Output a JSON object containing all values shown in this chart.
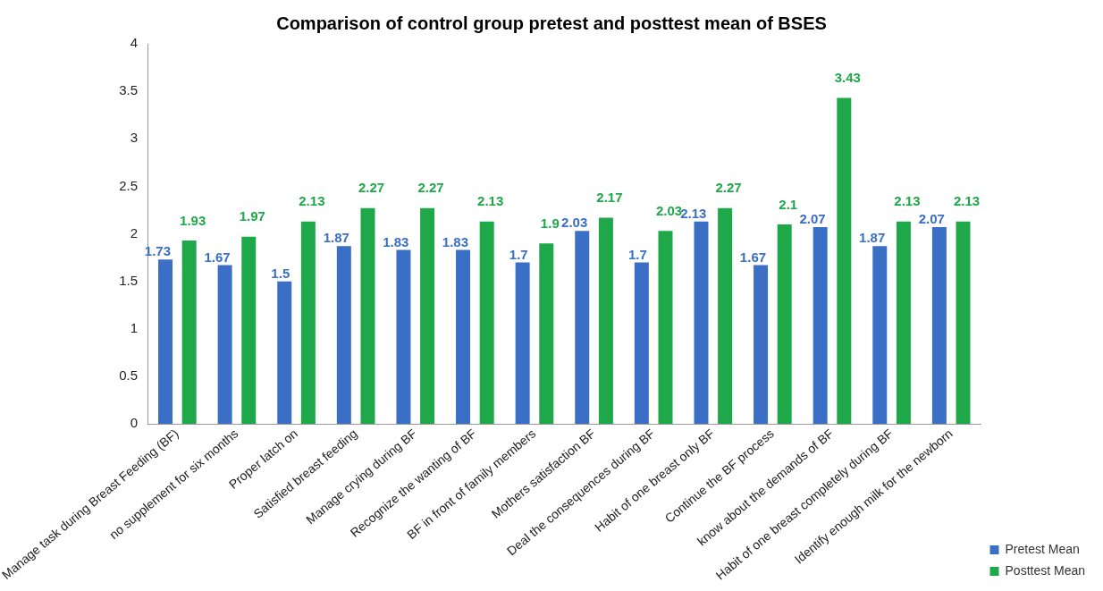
{
  "chart_data": {
    "type": "bar",
    "title": "Comparison of control group pretest and posttest mean of BSES",
    "categories": [
      "Manage task during Breast Feeding (BF)",
      "no supplement for six months",
      "Proper latch on",
      "Satisfied breast feeding",
      "Manage crying during BF",
      "Recognize the wanting of BF",
      "BF in front of family members",
      "Mothers satisfaction BF",
      "Deal the consequences during BF",
      "Habit of one breast only BF",
      "Continue the BF process",
      "know about the demands of BF",
      "Habit of one breast completely during BF",
      "Identify enough milk for the newborn"
    ],
    "series": [
      {
        "name": "Pretest Mean",
        "color": "#3b6fc6",
        "values": [
          1.73,
          1.67,
          1.5,
          1.87,
          1.83,
          1.83,
          1.7,
          2.03,
          1.7,
          2.13,
          1.67,
          2.07,
          1.87,
          2.07
        ]
      },
      {
        "name": "Posttest Mean",
        "color": "#1fa84a",
        "values": [
          1.93,
          1.97,
          2.13,
          2.27,
          2.27,
          2.13,
          1.9,
          2.17,
          2.03,
          2.27,
          2.1,
          3.43,
          2.13,
          2.13
        ]
      }
    ],
    "ylim": [
      0,
      4
    ],
    "yticks": [
      0,
      0.5,
      1,
      1.5,
      2,
      2.5,
      3,
      3.5,
      4
    ],
    "grid": false,
    "legend": "bottom right",
    "data_labels": true
  }
}
